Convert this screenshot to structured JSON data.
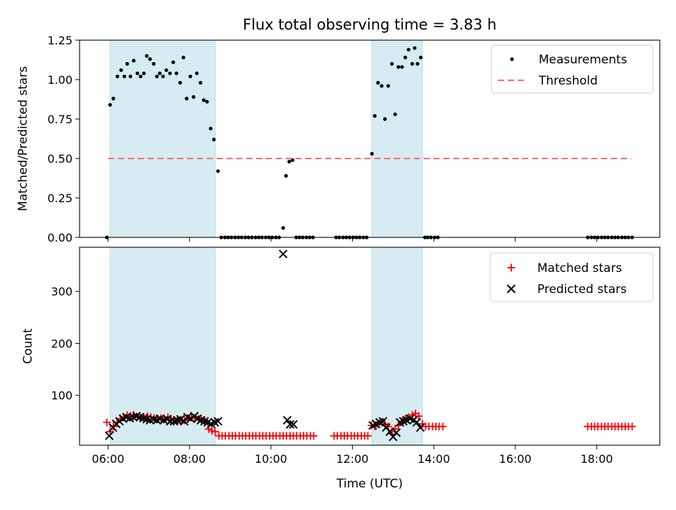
{
  "chart_data": {
    "type": "scatter",
    "title": "Flux total observing time = 3.83 h",
    "xlabel": "Time (UTC)",
    "x_ticks": [
      "06:00",
      "08:00",
      "10:00",
      "12:00",
      "14:00",
      "16:00",
      "18:00"
    ],
    "x_tick_values": [
      6,
      8,
      10,
      12,
      14,
      16,
      18
    ],
    "xlim": [
      5.3,
      19.55
    ],
    "shaded_intervals": [
      [
        6.05,
        8.63
      ],
      [
        12.48,
        13.72
      ]
    ],
    "shade_color": "#add8e6",
    "top": {
      "ylabel": "Matched/Predicted stars",
      "ylim": [
        0,
        1.25
      ],
      "y_ticks": [
        "0.00",
        "0.25",
        "0.50",
        "0.75",
        "1.00",
        "1.25"
      ],
      "y_tick_values": [
        0,
        0.25,
        0.5,
        0.75,
        1.0,
        1.25
      ],
      "legend": [
        "Measurements",
        "Threshold"
      ],
      "threshold": {
        "y": 0.5,
        "x_range": [
          6.0,
          18.85
        ],
        "color": "#ff6b6b"
      },
      "measurements": [
        [
          5.97,
          0.0
        ],
        [
          6.05,
          0.84
        ],
        [
          6.13,
          0.88
        ],
        [
          6.23,
          1.02
        ],
        [
          6.32,
          1.06
        ],
        [
          6.4,
          1.02
        ],
        [
          6.47,
          1.1
        ],
        [
          6.55,
          1.02
        ],
        [
          6.63,
          1.12
        ],
        [
          6.72,
          1.04
        ],
        [
          6.8,
          1.02
        ],
        [
          6.88,
          1.04
        ],
        [
          6.95,
          1.15
        ],
        [
          7.03,
          1.13
        ],
        [
          7.12,
          1.1
        ],
        [
          7.2,
          1.02
        ],
        [
          7.27,
          1.04
        ],
        [
          7.35,
          1.02
        ],
        [
          7.43,
          1.06
        ],
        [
          7.52,
          1.04
        ],
        [
          7.6,
          1.11
        ],
        [
          7.68,
          1.04
        ],
        [
          7.77,
          0.98
        ],
        [
          7.85,
          1.14
        ],
        [
          7.93,
          0.88
        ],
        [
          8.02,
          1.02
        ],
        [
          8.1,
          0.89
        ],
        [
          8.18,
          1.04
        ],
        [
          8.27,
          0.98
        ],
        [
          8.35,
          0.87
        ],
        [
          8.43,
          0.86
        ],
        [
          8.52,
          0.69
        ],
        [
          8.6,
          0.62
        ],
        [
          8.7,
          0.42
        ],
        [
          8.78,
          0.0
        ],
        [
          8.87,
          0.0
        ],
        [
          8.95,
          0.0
        ],
        [
          9.03,
          0.0
        ],
        [
          9.12,
          0.0
        ],
        [
          9.2,
          0.0
        ],
        [
          9.28,
          0.0
        ],
        [
          9.37,
          0.0
        ],
        [
          9.45,
          0.0
        ],
        [
          9.53,
          0.0
        ],
        [
          9.62,
          0.0
        ],
        [
          9.7,
          0.0
        ],
        [
          9.78,
          0.0
        ],
        [
          9.87,
          0.0
        ],
        [
          9.95,
          0.0
        ],
        [
          10.03,
          0.0
        ],
        [
          10.12,
          0.0
        ],
        [
          10.2,
          0.0
        ],
        [
          10.3,
          0.06
        ],
        [
          10.37,
          0.39
        ],
        [
          10.45,
          0.48
        ],
        [
          10.53,
          0.49
        ],
        [
          10.62,
          0.0
        ],
        [
          10.7,
          0.0
        ],
        [
          10.78,
          0.0
        ],
        [
          10.87,
          0.0
        ],
        [
          10.95,
          0.0
        ],
        [
          11.03,
          0.0
        ],
        [
          11.6,
          0.0
        ],
        [
          11.68,
          0.0
        ],
        [
          11.77,
          0.0
        ],
        [
          11.85,
          0.0
        ],
        [
          11.93,
          0.0
        ],
        [
          12.02,
          0.0
        ],
        [
          12.1,
          0.0
        ],
        [
          12.18,
          0.0
        ],
        [
          12.27,
          0.0
        ],
        [
          12.35,
          0.0
        ],
        [
          12.48,
          0.53
        ],
        [
          12.55,
          0.77
        ],
        [
          12.63,
          0.98
        ],
        [
          12.72,
          0.96
        ],
        [
          12.8,
          0.75
        ],
        [
          12.88,
          0.96
        ],
        [
          12.97,
          1.1
        ],
        [
          13.05,
          0.78
        ],
        [
          13.13,
          1.08
        ],
        [
          13.22,
          1.08
        ],
        [
          13.3,
          1.14
        ],
        [
          13.38,
          1.19
        ],
        [
          13.47,
          1.1
        ],
        [
          13.53,
          1.2
        ],
        [
          13.6,
          1.1
        ],
        [
          13.68,
          1.14
        ],
        [
          13.78,
          0.0
        ],
        [
          13.85,
          0.0
        ],
        [
          13.93,
          0.0
        ],
        [
          14.02,
          0.0
        ],
        [
          14.1,
          0.0
        ],
        [
          17.78,
          0.0
        ],
        [
          17.87,
          0.0
        ],
        [
          17.95,
          0.0
        ],
        [
          18.03,
          0.0
        ],
        [
          18.12,
          0.0
        ],
        [
          18.2,
          0.0
        ],
        [
          18.28,
          0.0
        ],
        [
          18.37,
          0.0
        ],
        [
          18.45,
          0.0
        ],
        [
          18.53,
          0.0
        ],
        [
          18.62,
          0.0
        ],
        [
          18.7,
          0.0
        ],
        [
          18.78,
          0.0
        ],
        [
          18.87,
          0.0
        ]
      ]
    },
    "bottom": {
      "ylabel": "Count",
      "ylim": [
        4,
        385
      ],
      "y_ticks": [
        "100",
        "200",
        "300"
      ],
      "y_tick_values": [
        100,
        200,
        300
      ],
      "legend": [
        "Matched stars",
        "Predicted stars"
      ],
      "matched_color": "#ff0000",
      "predicted_color": "#000000",
      "matched": [
        [
          5.97,
          48
        ],
        [
          6.05,
          30
        ],
        [
          6.13,
          40
        ],
        [
          6.22,
          48
        ],
        [
          6.3,
          55
        ],
        [
          6.38,
          58
        ],
        [
          6.47,
          62
        ],
        [
          6.55,
          60
        ],
        [
          6.63,
          62
        ],
        [
          6.72,
          58
        ],
        [
          6.8,
          56
        ],
        [
          6.88,
          58
        ],
        [
          6.97,
          60
        ],
        [
          7.05,
          58
        ],
        [
          7.13,
          56
        ],
        [
          7.22,
          55
        ],
        [
          7.3,
          56
        ],
        [
          7.38,
          55
        ],
        [
          7.47,
          58
        ],
        [
          7.55,
          54
        ],
        [
          7.63,
          52
        ],
        [
          7.72,
          52
        ],
        [
          7.8,
          50
        ],
        [
          7.88,
          52
        ],
        [
          7.97,
          55
        ],
        [
          8.05,
          58
        ],
        [
          8.13,
          56
        ],
        [
          8.22,
          55
        ],
        [
          8.3,
          52
        ],
        [
          8.38,
          50
        ],
        [
          8.47,
          35
        ],
        [
          8.55,
          32
        ],
        [
          8.63,
          30
        ],
        [
          8.72,
          22
        ],
        [
          8.8,
          22
        ],
        [
          8.88,
          22
        ],
        [
          8.97,
          22
        ],
        [
          9.05,
          22
        ],
        [
          9.13,
          22
        ],
        [
          9.22,
          22
        ],
        [
          9.3,
          22
        ],
        [
          9.38,
          22
        ],
        [
          9.47,
          22
        ],
        [
          9.55,
          22
        ],
        [
          9.63,
          22
        ],
        [
          9.72,
          22
        ],
        [
          9.8,
          22
        ],
        [
          9.88,
          22
        ],
        [
          9.97,
          22
        ],
        [
          10.05,
          22
        ],
        [
          10.13,
          22
        ],
        [
          10.22,
          22
        ],
        [
          10.3,
          22
        ],
        [
          10.38,
          22
        ],
        [
          10.47,
          22
        ],
        [
          10.55,
          22
        ],
        [
          10.63,
          22
        ],
        [
          10.72,
          22
        ],
        [
          10.8,
          22
        ],
        [
          10.88,
          22
        ],
        [
          10.97,
          22
        ],
        [
          11.05,
          22
        ],
        [
          11.55,
          22
        ],
        [
          11.63,
          22
        ],
        [
          11.72,
          22
        ],
        [
          11.8,
          22
        ],
        [
          11.88,
          22
        ],
        [
          11.97,
          22
        ],
        [
          12.05,
          22
        ],
        [
          12.13,
          22
        ],
        [
          12.22,
          22
        ],
        [
          12.3,
          22
        ],
        [
          12.38,
          22
        ],
        [
          12.47,
          42
        ],
        [
          12.55,
          40
        ],
        [
          12.63,
          45
        ],
        [
          12.72,
          48
        ],
        [
          12.8,
          44
        ],
        [
          12.88,
          40
        ],
        [
          12.97,
          30
        ],
        [
          13.05,
          35
        ],
        [
          13.13,
          42
        ],
        [
          13.22,
          50
        ],
        [
          13.3,
          55
        ],
        [
          13.38,
          58
        ],
        [
          13.47,
          62
        ],
        [
          13.55,
          65
        ],
        [
          13.63,
          60
        ],
        [
          13.72,
          45
        ],
        [
          13.8,
          40
        ],
        [
          13.88,
          40
        ],
        [
          13.97,
          40
        ],
        [
          14.05,
          40
        ],
        [
          14.13,
          40
        ],
        [
          14.22,
          40
        ],
        [
          17.78,
          40
        ],
        [
          17.87,
          40
        ],
        [
          17.95,
          40
        ],
        [
          18.03,
          40
        ],
        [
          18.12,
          40
        ],
        [
          18.2,
          40
        ],
        [
          18.28,
          40
        ],
        [
          18.37,
          40
        ],
        [
          18.45,
          40
        ],
        [
          18.53,
          40
        ],
        [
          18.62,
          40
        ],
        [
          18.7,
          40
        ],
        [
          18.78,
          40
        ],
        [
          18.87,
          40
        ]
      ],
      "predicted": [
        [
          6.03,
          22
        ],
        [
          6.12,
          38
        ],
        [
          6.2,
          45
        ],
        [
          6.28,
          50
        ],
        [
          6.37,
          55
        ],
        [
          6.45,
          58
        ],
        [
          6.53,
          56
        ],
        [
          6.62,
          58
        ],
        [
          6.7,
          60
        ],
        [
          6.78,
          58
        ],
        [
          6.87,
          56
        ],
        [
          6.95,
          54
        ],
        [
          7.03,
          52
        ],
        [
          7.12,
          54
        ],
        [
          7.2,
          52
        ],
        [
          7.28,
          55
        ],
        [
          7.37,
          52
        ],
        [
          7.45,
          54
        ],
        [
          7.53,
          50
        ],
        [
          7.62,
          50
        ],
        [
          7.7,
          52
        ],
        [
          7.78,
          54
        ],
        [
          7.87,
          50
        ],
        [
          7.95,
          58
        ],
        [
          8.03,
          55
        ],
        [
          8.12,
          60
        ],
        [
          8.2,
          55
        ],
        [
          8.28,
          52
        ],
        [
          8.37,
          50
        ],
        [
          8.45,
          48
        ],
        [
          8.53,
          45
        ],
        [
          8.62,
          48
        ],
        [
          8.7,
          50
        ],
        [
          10.3,
          372
        ],
        [
          10.4,
          52
        ],
        [
          10.47,
          44
        ],
        [
          10.55,
          44
        ],
        [
          12.5,
          42
        ],
        [
          12.58,
          45
        ],
        [
          12.67,
          48
        ],
        [
          12.75,
          50
        ],
        [
          12.83,
          38
        ],
        [
          12.92,
          30
        ],
        [
          13.0,
          20
        ],
        [
          13.08,
          28
        ],
        [
          13.17,
          48
        ],
        [
          13.25,
          50
        ],
        [
          13.33,
          52
        ],
        [
          13.42,
          55
        ],
        [
          13.5,
          52
        ],
        [
          13.58,
          48
        ],
        [
          13.67,
          38
        ]
      ]
    }
  }
}
